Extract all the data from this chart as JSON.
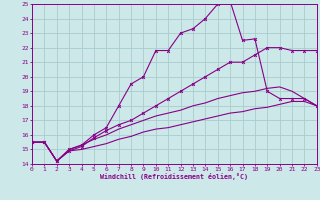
{
  "xlabel": "Windchill (Refroidissement éolien,°C)",
  "bg_color": "#cce8e8",
  "grid_color": "#aacccc",
  "line_color": "#880088",
  "xlim": [
    0,
    23
  ],
  "ylim": [
    14,
    25
  ],
  "xticks": [
    0,
    1,
    2,
    3,
    4,
    5,
    6,
    7,
    8,
    9,
    10,
    11,
    12,
    13,
    14,
    15,
    16,
    17,
    18,
    19,
    20,
    21,
    22,
    23
  ],
  "yticks": [
    14,
    15,
    16,
    17,
    18,
    19,
    20,
    21,
    22,
    23,
    24,
    25
  ],
  "line1_x": [
    0,
    1,
    2,
    3,
    4,
    5,
    6,
    7,
    8,
    9,
    10,
    11,
    12,
    13,
    14,
    15,
    16,
    17,
    18,
    19,
    20,
    21,
    22,
    23
  ],
  "line1_y": [
    15.5,
    15.5,
    14.2,
    15.0,
    15.3,
    16.0,
    16.5,
    18.0,
    19.5,
    20.0,
    21.8,
    21.8,
    23.0,
    23.3,
    24.0,
    25.0,
    25.2,
    22.5,
    22.6,
    19.0,
    18.5,
    18.5,
    18.5,
    18.0
  ],
  "line2_x": [
    0,
    1,
    2,
    3,
    4,
    5,
    6,
    7,
    8,
    9,
    10,
    11,
    12,
    13,
    14,
    15,
    16,
    17,
    18,
    19,
    20,
    21,
    22,
    23
  ],
  "line2_y": [
    15.5,
    15.5,
    14.2,
    14.9,
    15.2,
    15.8,
    16.3,
    16.7,
    17.0,
    17.5,
    18.0,
    18.5,
    19.0,
    19.5,
    20.0,
    20.5,
    21.0,
    21.0,
    21.5,
    22.0,
    22.0,
    21.8,
    21.8,
    21.8
  ],
  "line3_x": [
    0,
    1,
    2,
    3,
    4,
    5,
    6,
    7,
    8,
    9,
    10,
    11,
    12,
    13,
    14,
    15,
    16,
    17,
    18,
    19,
    20,
    21,
    22,
    23
  ],
  "line3_y": [
    15.5,
    15.5,
    14.2,
    15.0,
    15.3,
    15.7,
    16.0,
    16.4,
    16.7,
    17.0,
    17.3,
    17.5,
    17.7,
    18.0,
    18.2,
    18.5,
    18.7,
    18.9,
    19.0,
    19.2,
    19.3,
    19.0,
    18.5,
    18.0
  ],
  "line4_x": [
    0,
    1,
    2,
    3,
    4,
    5,
    6,
    7,
    8,
    9,
    10,
    11,
    12,
    13,
    14,
    15,
    16,
    17,
    18,
    19,
    20,
    21,
    22,
    23
  ],
  "line4_y": [
    15.5,
    15.5,
    14.2,
    14.9,
    15.0,
    15.2,
    15.4,
    15.7,
    15.9,
    16.2,
    16.4,
    16.5,
    16.7,
    16.9,
    17.1,
    17.3,
    17.5,
    17.6,
    17.8,
    17.9,
    18.1,
    18.3,
    18.3,
    18.0
  ]
}
